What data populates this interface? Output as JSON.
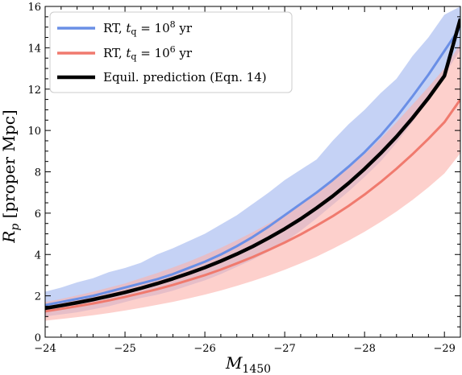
{
  "chart_data": {
    "type": "line",
    "xlabel": "M",
    "xlabel_sub": "1450",
    "ylabel": "R",
    "ylabel_sub": "p",
    "ylabel_rest": "[proper Mpc]",
    "xlim": [
      -24,
      -29.2
    ],
    "ylim": [
      0,
      16
    ],
    "x_reversed": true,
    "x_ticks": [
      -24,
      -25,
      -26,
      -27,
      -28,
      -29
    ],
    "x_tick_labels": [
      "−24",
      "−25",
      "−26",
      "−27",
      "−28",
      "−29"
    ],
    "y_ticks": [
      0,
      2,
      4,
      6,
      8,
      10,
      12,
      14,
      16
    ],
    "y_tick_labels": [
      "0",
      "2",
      "4",
      "6",
      "8",
      "10",
      "12",
      "14",
      "16"
    ],
    "grid": false,
    "legend_position": "top-left",
    "x": [
      -24.0,
      -24.2,
      -24.4,
      -24.6,
      -24.8,
      -25.0,
      -25.2,
      -25.4,
      -25.6,
      -25.8,
      -26.0,
      -26.2,
      -26.4,
      -26.6,
      -26.8,
      -27.0,
      -27.2,
      -27.4,
      -27.6,
      -27.8,
      -28.0,
      -28.2,
      -28.4,
      -28.6,
      -28.8,
      -29.0,
      -29.2
    ],
    "series": [
      {
        "legend": "RT, t_q = 10^8 yr",
        "legend_main": "RT, ",
        "legend_t": "t",
        "legend_q": "q",
        "legend_eq": " = 10",
        "legend_exp": "8",
        "legend_unit": " yr",
        "color": "#6a8fe6",
        "band_color": "#9fb4ee",
        "values": [
          1.55,
          1.7,
          1.85,
          2.0,
          2.2,
          2.4,
          2.6,
          2.8,
          3.05,
          3.35,
          3.65,
          4.0,
          4.4,
          4.85,
          5.35,
          5.9,
          6.45,
          7.0,
          7.6,
          8.25,
          8.95,
          9.75,
          10.65,
          11.65,
          12.7,
          13.85,
          15.0
        ],
        "band_low": [
          1.0,
          1.1,
          1.2,
          1.35,
          1.5,
          1.7,
          1.9,
          2.05,
          2.25,
          2.5,
          2.75,
          3.05,
          3.4,
          3.75,
          4.15,
          4.6,
          5.15,
          5.75,
          6.4,
          7.05,
          7.75,
          8.5,
          9.4,
          10.4,
          11.5,
          12.7,
          13.9
        ],
        "band_high": [
          2.2,
          2.4,
          2.65,
          2.85,
          3.15,
          3.35,
          3.6,
          4.0,
          4.3,
          4.65,
          5.0,
          5.45,
          5.9,
          6.45,
          7.0,
          7.6,
          8.1,
          8.6,
          9.5,
          10.3,
          11.0,
          11.8,
          12.5,
          13.6,
          14.5,
          15.6,
          16.0
        ]
      },
      {
        "legend": "RT, t_q = 10^6 yr",
        "legend_main": "RT, ",
        "legend_t": "t",
        "legend_q": "q",
        "legend_eq": " = 10",
        "legend_exp": "6",
        "legend_unit": " yr",
        "color": "#f07a6e",
        "band_color": "#fbb0aa",
        "values": [
          1.25,
          1.37,
          1.5,
          1.63,
          1.78,
          1.95,
          2.13,
          2.32,
          2.53,
          2.76,
          3.0,
          3.27,
          3.57,
          3.88,
          4.22,
          4.58,
          4.97,
          5.4,
          5.85,
          6.35,
          6.9,
          7.5,
          8.15,
          8.85,
          9.6,
          10.4,
          11.5
        ],
        "band_low": [
          0.8,
          0.88,
          0.97,
          1.06,
          1.17,
          1.29,
          1.42,
          1.56,
          1.71,
          1.88,
          2.06,
          2.26,
          2.48,
          2.72,
          2.98,
          3.26,
          3.57,
          3.9,
          4.27,
          4.67,
          5.1,
          5.57,
          6.08,
          6.64,
          7.25,
          7.92,
          8.9
        ],
        "band_high": [
          1.7,
          1.85,
          2.02,
          2.2,
          2.4,
          2.6,
          2.85,
          3.1,
          3.37,
          3.66,
          3.98,
          4.32,
          4.69,
          5.08,
          5.5,
          5.95,
          6.45,
          6.98,
          7.55,
          8.17,
          8.85,
          9.6,
          10.4,
          11.25,
          12.1,
          13.0,
          14.2
        ]
      },
      {
        "legend": "Equil. prediction (Eqn. 14)",
        "color": "#000000",
        "values": [
          1.4,
          1.53,
          1.67,
          1.82,
          1.99,
          2.17,
          2.37,
          2.59,
          2.83,
          3.09,
          3.37,
          3.68,
          4.02,
          4.39,
          4.8,
          5.24,
          5.72,
          6.25,
          6.82,
          7.45,
          8.14,
          8.89,
          9.7,
          10.6,
          11.57,
          12.64,
          15.4
        ]
      }
    ]
  }
}
